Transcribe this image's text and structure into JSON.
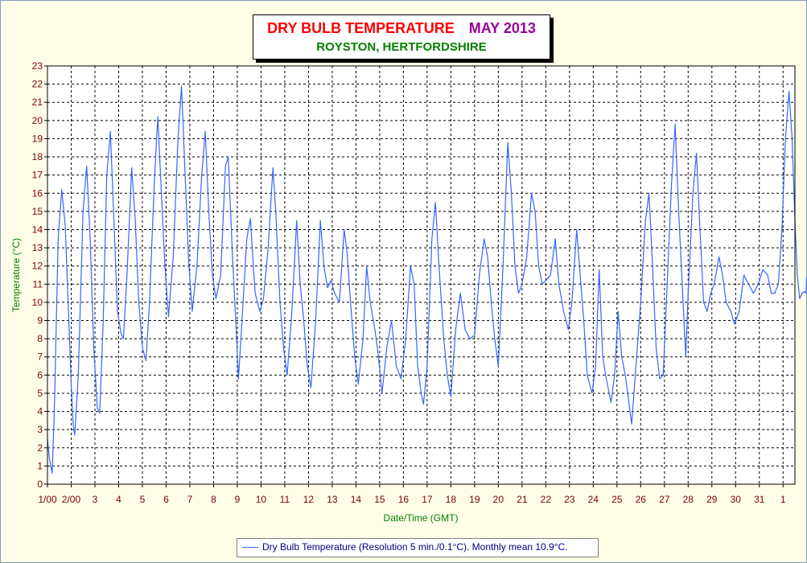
{
  "title": {
    "main": "DRY BULB TEMPERATURE",
    "month": "MAY 2013",
    "location": "ROYSTON, HERTFORDSHIRE"
  },
  "colors": {
    "background": "#fffde8",
    "series": "#3366ff",
    "tick_labels": "#800000",
    "axis_titles": "#008000",
    "grid": "#000000"
  },
  "legend": {
    "label": "Dry Bulb Temperature (Resolution 5 min./0.1°C). Monthly mean 10.9°C."
  },
  "chart_data": {
    "type": "line",
    "title": "DRY BULB TEMPERATURE MAY 2013",
    "subtitle": "ROYSTON, HERTFORDSHIRE",
    "xlabel": "Date/Time (GMT)",
    "ylabel": "Temperature (°C)",
    "xlim": [
      0,
      31.5
    ],
    "ylim": [
      0,
      23
    ],
    "grid": true,
    "legend_position": "bottom",
    "x_tick_labels": [
      "1/00",
      "2/00",
      "3",
      "4",
      "5",
      "6",
      "7",
      "8",
      "9",
      "10",
      "11",
      "12",
      "13",
      "14",
      "15",
      "16",
      "17",
      "18",
      "19",
      "20",
      "21",
      "22",
      "23",
      "24",
      "25",
      "26",
      "27",
      "28",
      "29",
      "30",
      "31",
      "1"
    ],
    "y_ticks": [
      0,
      1,
      2,
      3,
      4,
      5,
      6,
      7,
      8,
      9,
      10,
      11,
      12,
      13,
      14,
      15,
      16,
      17,
      18,
      19,
      20,
      21,
      22,
      23
    ],
    "series": [
      {
        "name": "Dry Bulb Temperature",
        "x_unit": "days since 1 May 2013 00:00 GMT",
        "points": [
          [
            0.0,
            2.5
          ],
          [
            0.08,
            1.4
          ],
          [
            0.2,
            0.6
          ],
          [
            0.3,
            4.5
          ],
          [
            0.45,
            13.5
          ],
          [
            0.6,
            16.2
          ],
          [
            0.75,
            14.2
          ],
          [
            0.9,
            9.0
          ],
          [
            1.0,
            5.5
          ],
          [
            1.08,
            3.3
          ],
          [
            1.15,
            2.7
          ],
          [
            1.3,
            6.0
          ],
          [
            1.5,
            15.0
          ],
          [
            1.65,
            17.5
          ],
          [
            1.8,
            13.5
          ],
          [
            1.95,
            7.5
          ],
          [
            2.1,
            4.2
          ],
          [
            2.2,
            3.9
          ],
          [
            2.35,
            9.0
          ],
          [
            2.5,
            17.0
          ],
          [
            2.65,
            19.4
          ],
          [
            2.8,
            14.5
          ],
          [
            2.95,
            9.5
          ],
          [
            3.1,
            8.3
          ],
          [
            3.2,
            8.0
          ],
          [
            3.35,
            11.5
          ],
          [
            3.55,
            17.4
          ],
          [
            3.7,
            14.5
          ],
          [
            3.85,
            10.0
          ],
          [
            4.0,
            7.5
          ],
          [
            4.15,
            6.8
          ],
          [
            4.3,
            10.0
          ],
          [
            4.5,
            16.5
          ],
          [
            4.65,
            20.2
          ],
          [
            4.8,
            16.0
          ],
          [
            4.95,
            12.0
          ],
          [
            5.1,
            9.2
          ],
          [
            5.3,
            12.5
          ],
          [
            5.5,
            19.0
          ],
          [
            5.65,
            21.9
          ],
          [
            5.8,
            17.0
          ],
          [
            5.95,
            12.2
          ],
          [
            6.1,
            9.5
          ],
          [
            6.3,
            12.0
          ],
          [
            6.5,
            17.0
          ],
          [
            6.65,
            19.4
          ],
          [
            6.8,
            15.0
          ],
          [
            6.95,
            11.5
          ],
          [
            7.1,
            10.2
          ],
          [
            7.3,
            11.5
          ],
          [
            7.5,
            17.5
          ],
          [
            7.62,
            18.0
          ],
          [
            7.8,
            12.5
          ],
          [
            7.95,
            8.5
          ],
          [
            8.05,
            5.8
          ],
          [
            8.2,
            9.0
          ],
          [
            8.4,
            13.5
          ],
          [
            8.55,
            14.6
          ],
          [
            8.75,
            10.5
          ],
          [
            8.95,
            9.5
          ],
          [
            9.1,
            10.2
          ],
          [
            9.3,
            13.0
          ],
          [
            9.5,
            17.4
          ],
          [
            9.62,
            15.0
          ],
          [
            9.8,
            10.0
          ],
          [
            9.95,
            7.5
          ],
          [
            10.1,
            6.0
          ],
          [
            10.3,
            9.5
          ],
          [
            10.5,
            14.5
          ],
          [
            10.65,
            11.0
          ],
          [
            10.8,
            9.0
          ],
          [
            10.95,
            6.5
          ],
          [
            11.1,
            5.3
          ],
          [
            11.3,
            9.0
          ],
          [
            11.5,
            14.5
          ],
          [
            11.65,
            12.0
          ],
          [
            11.8,
            10.8
          ],
          [
            11.95,
            11.2
          ],
          [
            12.1,
            10.5
          ],
          [
            12.3,
            10.0
          ],
          [
            12.5,
            14.0
          ],
          [
            12.62,
            12.8
          ],
          [
            12.8,
            9.5
          ],
          [
            12.95,
            7.0
          ],
          [
            13.1,
            5.5
          ],
          [
            13.3,
            8.0
          ],
          [
            13.45,
            12.0
          ],
          [
            13.6,
            10.0
          ],
          [
            13.8,
            8.5
          ],
          [
            13.95,
            7.0
          ],
          [
            14.1,
            5.0
          ],
          [
            14.3,
            7.5
          ],
          [
            14.5,
            9.0
          ],
          [
            14.7,
            6.5
          ],
          [
            14.9,
            5.8
          ],
          [
            15.1,
            8.0
          ],
          [
            15.3,
            12.0
          ],
          [
            15.45,
            11.0
          ],
          [
            15.6,
            6.5
          ],
          [
            15.75,
            5.0
          ],
          [
            15.85,
            4.4
          ],
          [
            16.0,
            6.5
          ],
          [
            16.2,
            13.5
          ],
          [
            16.35,
            15.5
          ],
          [
            16.5,
            12.0
          ],
          [
            16.7,
            8.0
          ],
          [
            16.85,
            6.0
          ],
          [
            17.0,
            4.8
          ],
          [
            17.2,
            8.5
          ],
          [
            17.4,
            10.5
          ],
          [
            17.6,
            8.5
          ],
          [
            17.8,
            8.0
          ],
          [
            18.0,
            8.2
          ],
          [
            18.2,
            11.5
          ],
          [
            18.4,
            13.5
          ],
          [
            18.55,
            12.5
          ],
          [
            18.7,
            10.0
          ],
          [
            18.85,
            8.0
          ],
          [
            19.0,
            6.5
          ],
          [
            19.2,
            12.0
          ],
          [
            19.4,
            18.8
          ],
          [
            19.55,
            16.0
          ],
          [
            19.7,
            12.0
          ],
          [
            19.85,
            10.5
          ],
          [
            20.0,
            11.0
          ],
          [
            20.2,
            12.5
          ],
          [
            20.4,
            16.0
          ],
          [
            20.55,
            15.0
          ],
          [
            20.7,
            12.0
          ],
          [
            20.85,
            11.0
          ],
          [
            21.0,
            11.2
          ],
          [
            21.2,
            11.5
          ],
          [
            21.4,
            13.5
          ],
          [
            21.55,
            11.0
          ],
          [
            21.75,
            9.5
          ],
          [
            21.95,
            8.5
          ],
          [
            22.1,
            10.0
          ],
          [
            22.3,
            14.0
          ],
          [
            22.45,
            11.5
          ],
          [
            22.6,
            9.0
          ],
          [
            22.75,
            6.0
          ],
          [
            22.95,
            5.0
          ],
          [
            23.1,
            6.5
          ],
          [
            23.25,
            11.8
          ],
          [
            23.4,
            7.0
          ],
          [
            23.55,
            5.8
          ],
          [
            23.75,
            4.5
          ],
          [
            23.9,
            6.0
          ],
          [
            24.05,
            9.5
          ],
          [
            24.2,
            7.0
          ],
          [
            24.35,
            6.0
          ],
          [
            24.5,
            4.5
          ],
          [
            24.62,
            3.3
          ],
          [
            24.8,
            6.5
          ],
          [
            25.0,
            10.0
          ],
          [
            25.2,
            14.5
          ],
          [
            25.35,
            16.0
          ],
          [
            25.5,
            12.0
          ],
          [
            25.65,
            7.5
          ],
          [
            25.8,
            5.8
          ],
          [
            25.95,
            6.0
          ],
          [
            26.1,
            10.5
          ],
          [
            26.3,
            16.5
          ],
          [
            26.45,
            19.8
          ],
          [
            26.6,
            15.0
          ],
          [
            26.75,
            11.0
          ],
          [
            26.9,
            7.0
          ],
          [
            27.0,
            10.5
          ],
          [
            27.2,
            16.0
          ],
          [
            27.35,
            18.2
          ],
          [
            27.5,
            14.0
          ],
          [
            27.65,
            10.0
          ],
          [
            27.8,
            9.5
          ],
          [
            27.95,
            10.5
          ],
          [
            28.1,
            11.0
          ],
          [
            28.3,
            12.5
          ],
          [
            28.45,
            11.5
          ],
          [
            28.6,
            10.0
          ],
          [
            28.8,
            9.5
          ],
          [
            28.95,
            8.8
          ],
          [
            29.15,
            9.5
          ],
          [
            29.35,
            11.5
          ],
          [
            29.55,
            11.0
          ],
          [
            29.75,
            10.5
          ],
          [
            29.95,
            11.0
          ],
          [
            30.15,
            11.8
          ],
          [
            30.35,
            11.5
          ],
          [
            30.5,
            10.5
          ],
          [
            30.65,
            10.5
          ],
          [
            30.8,
            11.0
          ],
          [
            30.95,
            14.0
          ],
          [
            31.1,
            19.0
          ],
          [
            31.25,
            21.6
          ],
          [
            31.38,
            19.0
          ],
          [
            31.5,
            14.5
          ],
          [
            31.6,
            11.5
          ],
          [
            31.7,
            10.2
          ],
          [
            31.8,
            10.5
          ],
          [
            31.9,
            10.6
          ],
          [
            31.97,
            10.5
          ],
          [
            31.99,
            11.4
          ]
        ]
      }
    ]
  }
}
